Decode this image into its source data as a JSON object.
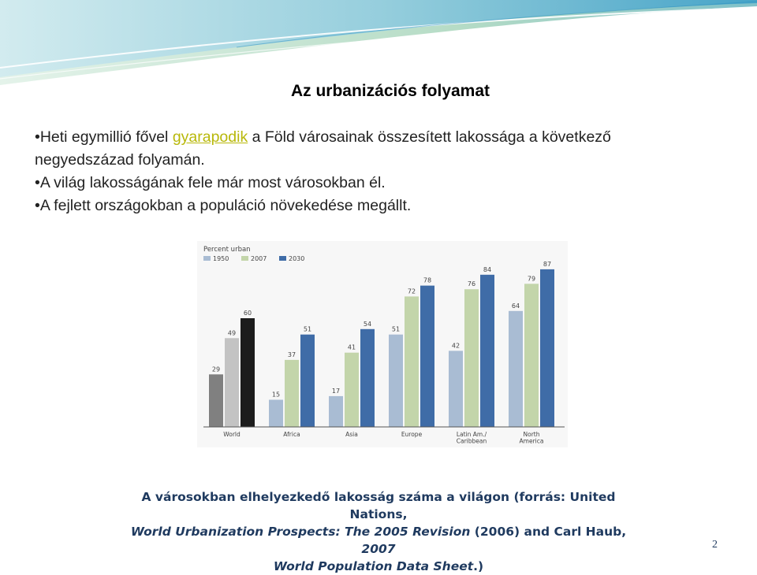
{
  "slide": {
    "title": "Az urbanizációs folyamat",
    "bullets": {
      "b1_pre": "•Heti egymillió fővel ",
      "b1_link": "gyarapodik",
      "b1_post": " a Föld városainak összesített lakossága a következő",
      "b1_line2": "negyedszázad folyamán.",
      "b2": "•A világ lakosságának fele már most városokban él.",
      "b3": "•A fejlett országokban a populáció növekedése megállt."
    },
    "caption": {
      "line1": "A városokban elhelyezkedő lakosság száma a világon (forrás: United Nations,",
      "line2_i1": "World Urbanization Prospects: The 2005 Revision",
      "line2_mid": " (2006) and Carl Haub, ",
      "line2_i2": "2007",
      "line3_i": "World Population Data Sheet",
      "line3_end": ".)"
    },
    "page_number": "2"
  },
  "chart_data": {
    "type": "bar",
    "title": "Percent urban",
    "categories": [
      "World",
      "Africa",
      "Asia",
      "Europe",
      "Latin Am./ Caribbean",
      "North America"
    ],
    "series": [
      {
        "name": "1950",
        "values": [
          29,
          15,
          17,
          51,
          42,
          64
        ]
      },
      {
        "name": "2007",
        "values": [
          49,
          37,
          41,
          72,
          76,
          79
        ]
      },
      {
        "name": "2030",
        "values": [
          60,
          51,
          54,
          78,
          84,
          87
        ]
      }
    ],
    "colors": {
      "world": [
        "#808080",
        "#c3c3c3",
        "#1c1c1c"
      ],
      "regions": [
        "#a9bcd3",
        "#c3d5aa",
        "#3f6ca7"
      ]
    },
    "ylim": [
      0,
      100
    ],
    "legend": "top-left",
    "grid": false
  }
}
